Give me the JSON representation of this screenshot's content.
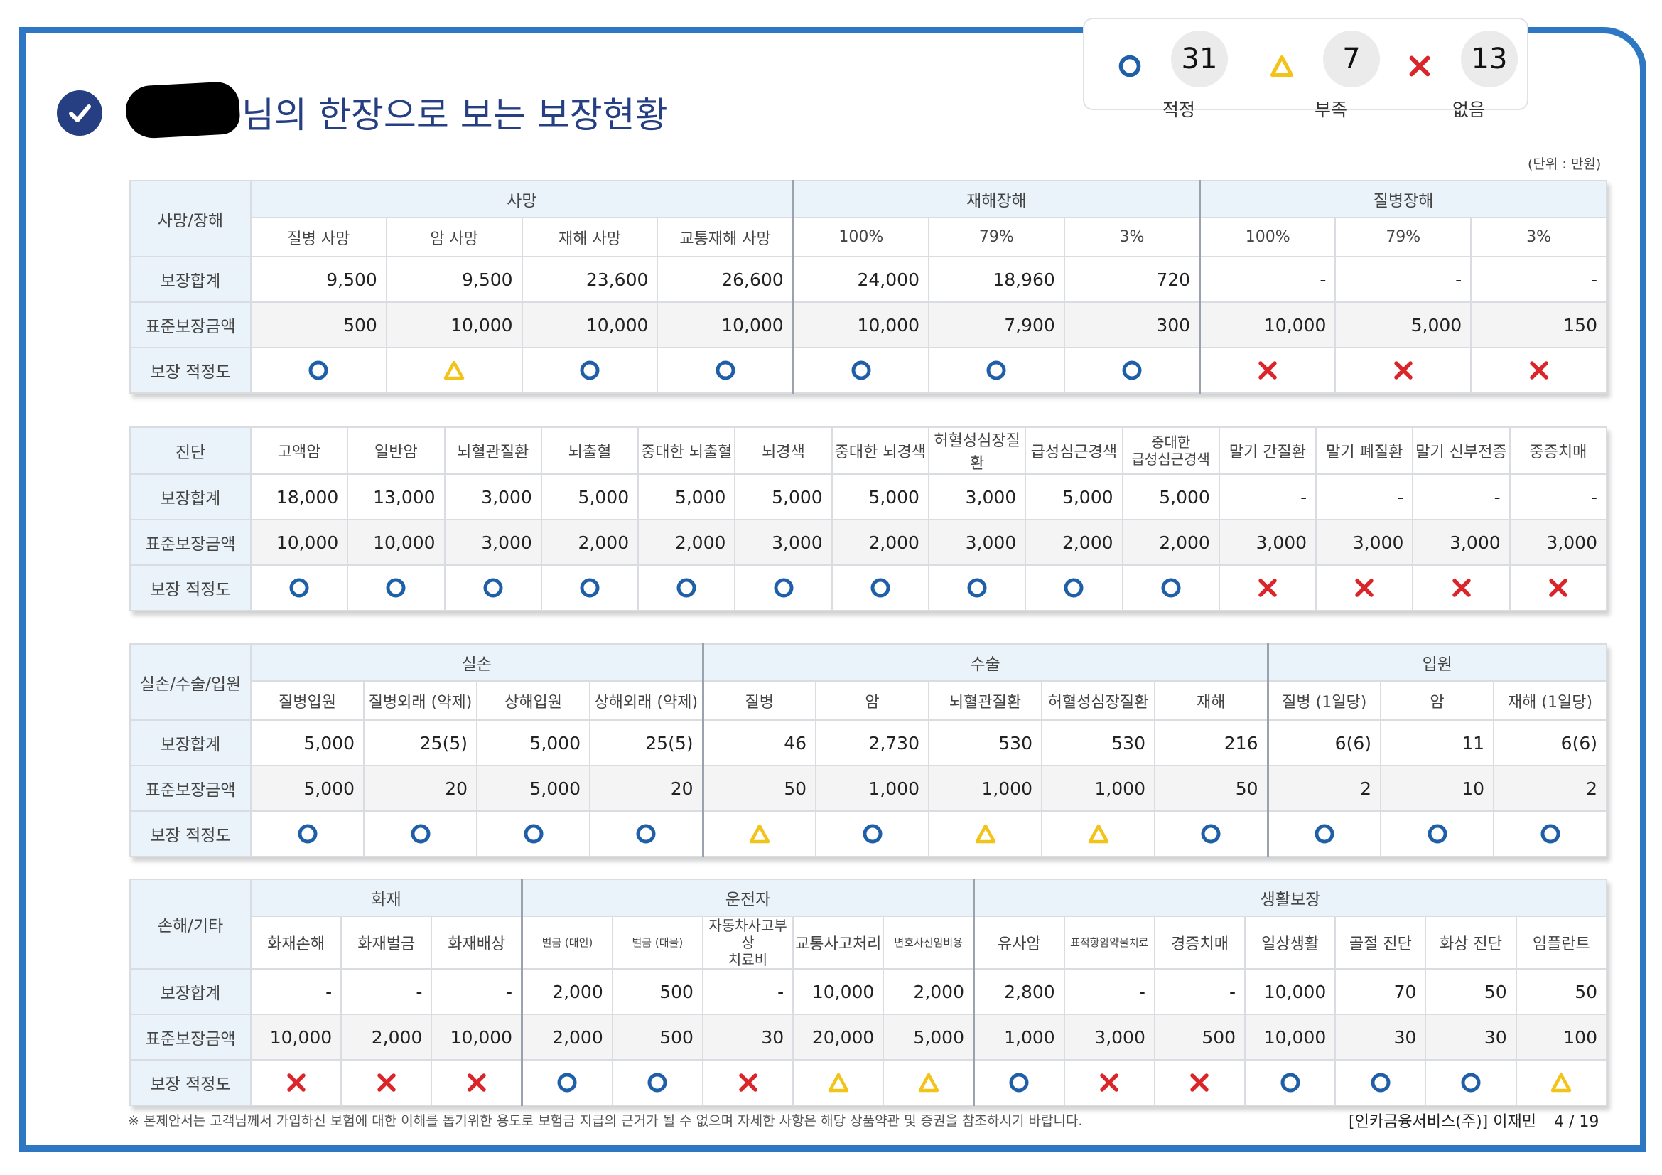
{
  "title": {
    "text": "님의 한장으로 보는 보장현황"
  },
  "summary": [
    {
      "symbol": "circle",
      "count": "31",
      "label": "적정"
    },
    {
      "symbol": "triangle",
      "count": "7",
      "label": "부족"
    },
    {
      "symbol": "cross",
      "count": "13",
      "label": "없음"
    }
  ],
  "unit": "(단위 : 만원)",
  "row_labels": {
    "sum": "보장합계",
    "std": "표준보장금액",
    "fit": "보장 적정도"
  },
  "tables": [
    {
      "rowhead": "사망/장해",
      "groups": [
        {
          "label": "사망",
          "span": 4
        },
        {
          "label": "재해장해",
          "span": 3
        },
        {
          "label": "질병장해",
          "span": 3
        }
      ],
      "columns": [
        "질병 사망",
        "암 사망",
        "재해 사망",
        "교통재해 사망",
        "100%",
        "79%",
        "3%",
        "100%",
        "79%",
        "3%"
      ],
      "sum": [
        "9,500",
        "9,500",
        "23,600",
        "26,600",
        "24,000",
        "18,960",
        "720",
        "-",
        "-",
        "-"
      ],
      "std": [
        "500",
        "10,000",
        "10,000",
        "10,000",
        "10,000",
        "7,900",
        "300",
        "10,000",
        "5,000",
        "150"
      ],
      "fit": [
        "circle",
        "triangle",
        "circle",
        "circle",
        "circle",
        "circle",
        "circle",
        "cross",
        "cross",
        "cross"
      ]
    },
    {
      "rowhead": "진단",
      "groups": [],
      "columns": [
        "고액암",
        "일반암",
        "뇌혈관질환",
        "뇌출혈",
        "중대한 뇌출혈",
        "뇌경색",
        "중대한 뇌경색",
        "허혈성심장질환",
        "급성심근경색",
        "중대한\n급성심근경색",
        "말기 간질환",
        "말기 폐질환",
        "말기 신부전증",
        "중증치매"
      ],
      "sum": [
        "18,000",
        "13,000",
        "3,000",
        "5,000",
        "5,000",
        "5,000",
        "5,000",
        "3,000",
        "5,000",
        "5,000",
        "-",
        "-",
        "-",
        "-"
      ],
      "std": [
        "10,000",
        "10,000",
        "3,000",
        "2,000",
        "2,000",
        "3,000",
        "2,000",
        "3,000",
        "2,000",
        "2,000",
        "3,000",
        "3,000",
        "3,000",
        "3,000"
      ],
      "fit": [
        "circle",
        "circle",
        "circle",
        "circle",
        "circle",
        "circle",
        "circle",
        "circle",
        "circle",
        "circle",
        "cross",
        "cross",
        "cross",
        "cross"
      ]
    },
    {
      "rowhead": "실손/수술/입원",
      "groups": [
        {
          "label": "실손",
          "span": 4
        },
        {
          "label": "수술",
          "span": 5
        },
        {
          "label": "입원",
          "span": 3
        }
      ],
      "columns": [
        "질병입원",
        "질병외래 (약제)",
        "상해입원",
        "상해외래 (약제)",
        "질병",
        "암",
        "뇌혈관질환",
        "허혈성심장질환",
        "재해",
        "질병 (1일당)",
        "암",
        "재해 (1일당)"
      ],
      "sum": [
        "5,000",
        "25(5)",
        "5,000",
        "25(5)",
        "46",
        "2,730",
        "530",
        "530",
        "216",
        "6(6)",
        "11",
        "6(6)"
      ],
      "std": [
        "5,000",
        "20",
        "5,000",
        "20",
        "50",
        "1,000",
        "1,000",
        "1,000",
        "50",
        "2",
        "10",
        "2"
      ],
      "fit": [
        "circle",
        "circle",
        "circle",
        "circle",
        "triangle",
        "circle",
        "triangle",
        "triangle",
        "circle",
        "circle",
        "circle",
        "circle"
      ]
    },
    {
      "rowhead": "손해/기타",
      "groups": [
        {
          "label": "화재",
          "span": 3
        },
        {
          "label": "운전자",
          "span": 5
        },
        {
          "label": "생활보장",
          "span": 7
        }
      ],
      "columns": [
        "화재손해",
        "화재벌금",
        "화재배상",
        "벌금 (대인)",
        "벌금 (대물)",
        "자동차사고부상\n치료비",
        "교통사고처리",
        "변호사선임비용",
        "유사암",
        "표적항암약물치료",
        "경증치매",
        "일상생활",
        "골절 진단",
        "화상 진단",
        "임플란트"
      ],
      "sum": [
        "-",
        "-",
        "-",
        "2,000",
        "500",
        "-",
        "10,000",
        "2,000",
        "2,800",
        "-",
        "-",
        "10,000",
        "70",
        "50",
        "50"
      ],
      "std": [
        "10,000",
        "2,000",
        "10,000",
        "2,000",
        "500",
        "30",
        "20,000",
        "5,000",
        "1,000",
        "3,000",
        "500",
        "10,000",
        "30",
        "30",
        "100"
      ],
      "fit": [
        "cross",
        "cross",
        "cross",
        "circle",
        "circle",
        "cross",
        "triangle",
        "triangle",
        "circle",
        "cross",
        "cross",
        "circle",
        "circle",
        "circle",
        "triangle"
      ]
    }
  ],
  "footer": {
    "note": "※ 본제안서는 고객님께서 가입하신 보험에 대한 이해를 돕기위한 용도로 보험금 지급의 근거가 될 수 없으며 자세한 사항은 해당 상품약관 및 증권을 참조하시기 바랍니다.",
    "company": "[인카금융서비스(주)] 이재민",
    "page": "4 / 19"
  },
  "colors": {
    "circle": "#1f5fa8",
    "triangle": "#f2c318",
    "cross": "#d9262b",
    "accent": "#2d77c3",
    "title": "#253f82"
  }
}
